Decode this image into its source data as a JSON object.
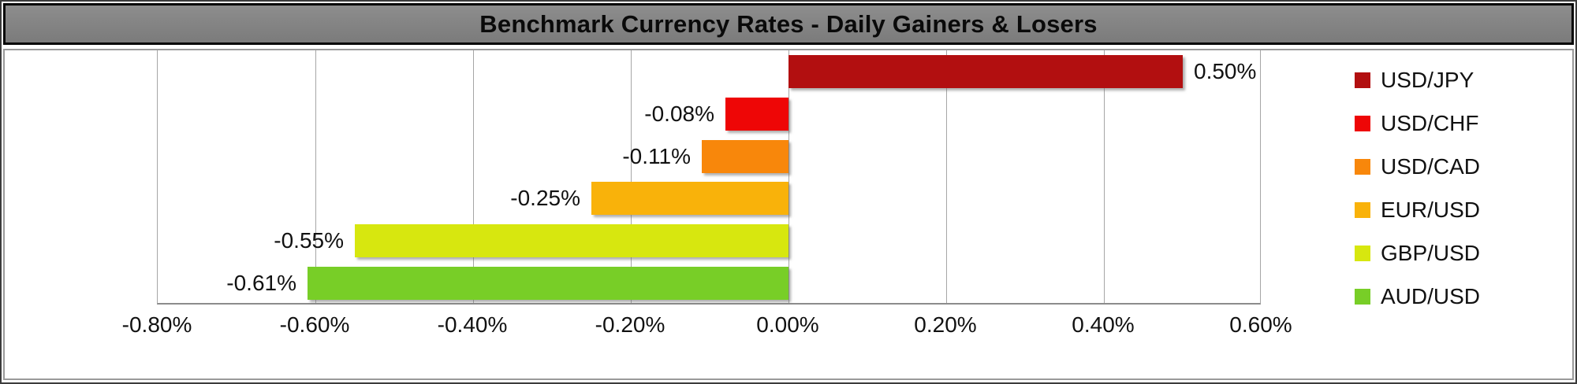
{
  "title": "Benchmark Currency Rates - Daily Gainers & Losers",
  "chart_data": {
    "type": "bar",
    "orientation": "horizontal",
    "title": "Benchmark Currency Rates - Daily Gainers & Losers",
    "categories": [
      "USD/JPY",
      "USD/CHF",
      "USD/CAD",
      "EUR/USD",
      "GBP/USD",
      "AUD/USD"
    ],
    "values": [
      0.5,
      -0.08,
      -0.11,
      -0.25,
      -0.55,
      -0.61
    ],
    "data_labels": [
      "0.50%",
      "-0.08%",
      "-0.11%",
      "-0.25%",
      "-0.55%",
      "-0.61%"
    ],
    "colors": [
      "#B20F10",
      "#EE0606",
      "#F8870B",
      "#F9B20A",
      "#D7E70F",
      "#78CE27"
    ],
    "x_tick_labels": [
      "-0.80%",
      "-0.60%",
      "-0.40%",
      "-0.20%",
      "0.00%",
      "0.20%",
      "0.40%",
      "0.60%"
    ],
    "x_tick_values": [
      -0.8,
      -0.6,
      -0.4,
      -0.2,
      0.0,
      0.2,
      0.4,
      0.6
    ],
    "xlim": [
      -0.8,
      0.6
    ],
    "grid": "vertical",
    "legend_position": "right",
    "legend": [
      {
        "label": "USD/JPY",
        "color": "#B20F10"
      },
      {
        "label": "USD/CHF",
        "color": "#EE0606"
      },
      {
        "label": "USD/CAD",
        "color": "#F8870B"
      },
      {
        "label": "EUR/USD",
        "color": "#F9B20A"
      },
      {
        "label": "GBP/USD",
        "color": "#D7E70F"
      },
      {
        "label": "AUD/USD",
        "color": "#78CE27"
      }
    ]
  },
  "style": {
    "title_bg": "#828282",
    "title_border": "#060606",
    "gridline_color": "#a6a6a6",
    "axis_color": "#8c8c8c"
  }
}
